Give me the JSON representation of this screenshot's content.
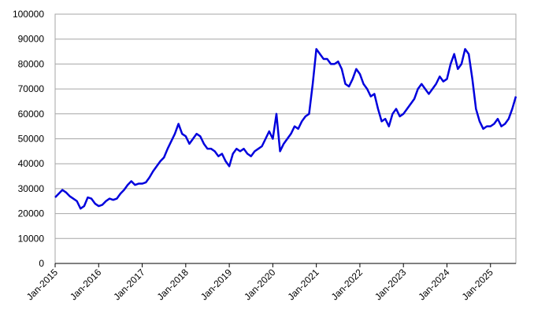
{
  "chart_data": {
    "type": "line",
    "x": [
      "2015-01",
      "2015-02",
      "2015-03",
      "2015-04",
      "2015-05",
      "2015-06",
      "2015-07",
      "2015-08",
      "2015-09",
      "2015-10",
      "2015-11",
      "2015-12",
      "2016-01",
      "2016-02",
      "2016-03",
      "2016-04",
      "2016-05",
      "2016-06",
      "2016-07",
      "2016-08",
      "2016-09",
      "2016-10",
      "2016-11",
      "2016-12",
      "2017-01",
      "2017-02",
      "2017-03",
      "2017-04",
      "2017-05",
      "2017-06",
      "2017-07",
      "2017-08",
      "2017-09",
      "2017-10",
      "2017-11",
      "2017-12",
      "2018-01",
      "2018-02",
      "2018-03",
      "2018-04",
      "2018-05",
      "2018-06",
      "2018-07",
      "2018-08",
      "2018-09",
      "2018-10",
      "2018-11",
      "2018-12",
      "2019-01",
      "2019-02",
      "2019-03",
      "2019-04",
      "2019-05",
      "2019-06",
      "2019-07",
      "2019-08",
      "2019-09",
      "2019-10",
      "2019-11",
      "2019-12",
      "2020-01",
      "2020-02",
      "2020-03",
      "2020-04",
      "2020-05",
      "2020-06",
      "2020-07",
      "2020-08",
      "2020-09",
      "2020-10",
      "2020-11",
      "2020-12",
      "2021-01",
      "2021-02",
      "2021-03",
      "2021-04",
      "2021-05",
      "2021-06",
      "2021-07",
      "2021-08",
      "2021-09",
      "2021-10",
      "2021-11",
      "2021-12",
      "2022-01",
      "2022-02",
      "2022-03",
      "2022-04",
      "2022-05",
      "2022-06",
      "2022-07",
      "2022-08",
      "2022-09",
      "2022-10",
      "2022-11",
      "2022-12",
      "2023-01",
      "2023-02",
      "2023-03",
      "2023-04",
      "2023-05",
      "2023-06",
      "2023-07",
      "2023-08",
      "2023-09",
      "2023-10",
      "2023-11",
      "2023-12",
      "2024-01",
      "2024-02",
      "2024-03",
      "2024-04",
      "2024-05",
      "2024-06",
      "2024-07",
      "2024-08",
      "2024-09",
      "2024-10",
      "2024-11",
      "2024-12",
      "2025-01",
      "2025-02",
      "2025-03",
      "2025-04",
      "2025-05",
      "2025-06",
      "2025-07",
      "2025-08"
    ],
    "series": [
      {
        "color": "#0000dd",
        "values": [
          26500,
          28000,
          29500,
          28500,
          27000,
          26000,
          25000,
          22000,
          23000,
          26500,
          26000,
          24000,
          23000,
          23500,
          25000,
          26000,
          25500,
          26000,
          28000,
          29500,
          31500,
          33000,
          31500,
          32000,
          32000,
          32500,
          34500,
          37000,
          39000,
          41000,
          42500,
          46000,
          49000,
          52000,
          56000,
          52000,
          51000,
          48000,
          50000,
          52000,
          51000,
          48000,
          46000,
          46000,
          45000,
          43000,
          44000,
          41000,
          39000,
          44000,
          46000,
          45000,
          46000,
          44000,
          43000,
          45000,
          46000,
          47000,
          50000,
          53000,
          50000,
          60000,
          45000,
          48000,
          50000,
          52000,
          55000,
          54000,
          57000,
          59000,
          60000,
          72000,
          86000,
          84000,
          82000,
          82000,
          80000,
          80000,
          81000,
          78000,
          72000,
          71000,
          74000,
          78000,
          76000,
          72000,
          70000,
          67000,
          68000,
          62000,
          57000,
          58000,
          55000,
          60000,
          62000,
          59000,
          60000,
          62000,
          64000,
          66000,
          70000,
          72000,
          70000,
          68000,
          70000,
          72000,
          75000,
          73000,
          74000,
          80000,
          84000,
          78000,
          80000,
          86000,
          84000,
          74000,
          62000,
          57000,
          54000,
          55000,
          55000,
          56000,
          58000,
          55000,
          56000,
          58000,
          62000,
          67000
        ]
      }
    ],
    "xlim": [
      "2015-01",
      "2025-08"
    ],
    "xticks": [
      {
        "value": "2015-01",
        "label": "Jan-2015"
      },
      {
        "value": "2016-01",
        "label": "Jan-2016"
      },
      {
        "value": "2017-01",
        "label": "Jan-2017"
      },
      {
        "value": "2018-01",
        "label": "Jan-2018"
      },
      {
        "value": "2019-01",
        "label": "Jan-2019"
      },
      {
        "value": "2020-01",
        "label": "Jan-2020"
      },
      {
        "value": "2021-01",
        "label": "Jan-2021"
      },
      {
        "value": "2022-01",
        "label": "Jan-2022"
      },
      {
        "value": "2023-01",
        "label": "Jan-2023"
      },
      {
        "value": "2024-01",
        "label": "Jan-2024"
      },
      {
        "value": "2025-01",
        "label": "Jan-2025"
      }
    ],
    "ylim": [
      0,
      100000
    ],
    "yticks": [
      0,
      10000,
      20000,
      30000,
      40000,
      50000,
      60000,
      70000,
      80000,
      90000,
      100000
    ],
    "grid": true
  }
}
